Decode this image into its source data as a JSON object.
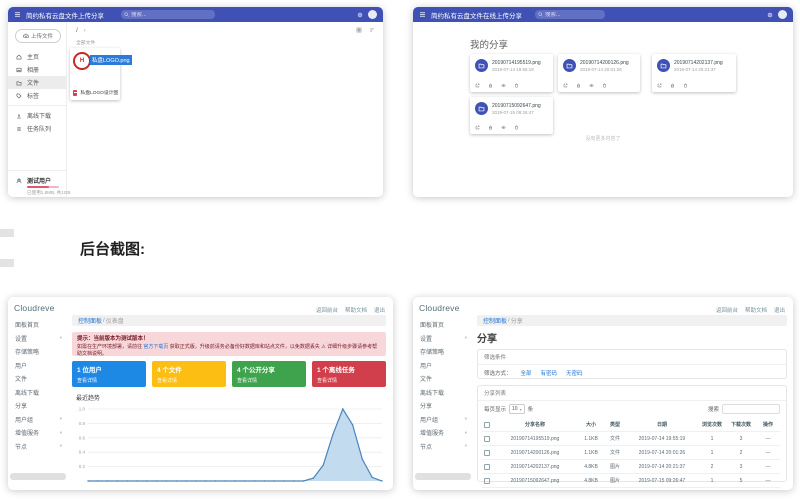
{
  "page": {
    "backend_label": "后台截图:"
  },
  "front_files": {
    "header": {
      "title": "简约私有云盘文件上传分享",
      "search_placeholder": "搜索..."
    },
    "sidebar": {
      "upload_button": "上传文件",
      "items": [
        {
          "label": "主页",
          "icon": "home-icon"
        },
        {
          "label": "相册",
          "icon": "image-icon"
        },
        {
          "label": "文件",
          "icon": "folder-icon",
          "selected": true
        },
        {
          "label": "标签",
          "icon": "tag-icon"
        }
      ],
      "tools": [
        {
          "label": "离线下载",
          "icon": "download-icon"
        },
        {
          "label": "任务队列",
          "icon": "queue-icon"
        }
      ],
      "storage": {
        "user": "测试用户",
        "usage": "已使用1.8MB, 共1GB"
      }
    },
    "content": {
      "breadcrumb_root": "/",
      "hint": "全部文件",
      "file_card": {
        "selected_name": "私盘LOGO.png",
        "footer_name": "私盘LOGO设计图稿.p..."
      }
    }
  },
  "front_shares": {
    "header": {
      "title": "简约私有云盘文件在线上传分享",
      "search_placeholder": "搜索..."
    },
    "heading": "我的分享",
    "cards": [
      {
        "name": "20190714195519.png",
        "date": "2019-07-14 19:55:19"
      },
      {
        "name": "20190714200126.png",
        "date": "2019-07-14 20:01:26"
      },
      {
        "name": "20190714202137.png",
        "date": "2019-07-14 20:21:37"
      },
      {
        "name": "20190715092647.png",
        "date": "2019-07-15 09:26:47"
      }
    ],
    "empty_hint": "没有更多内容了"
  },
  "admin": {
    "logo": "Cloudreve",
    "top_links": [
      "返回前台",
      "帮助文档",
      "退出"
    ],
    "sidebar_items": [
      {
        "label": "面板首页"
      },
      {
        "label": "设置",
        "expandable": true
      },
      {
        "label": "存储策略"
      },
      {
        "label": "用户"
      },
      {
        "label": "文件"
      },
      {
        "label": "离线下载"
      },
      {
        "label": "分享"
      },
      {
        "label": "用户组",
        "expandable": true
      },
      {
        "label": "增值服务",
        "expandable": true
      },
      {
        "label": "节点",
        "expandable": true
      }
    ]
  },
  "admin_dashboard": {
    "breadcrumb": {
      "link": "控制面板",
      "sep": " / ",
      "current": "仪表盘"
    },
    "alert": {
      "title": "提示：当前版本为测试版本！",
      "body_pre": "如需在生产环境部署，请前往 ",
      "body_link": "官方下载页",
      "body_post": " 获取正式版，升级前请务必备份好数据库和站点文件，以免数据丢失 ⚠ 详细升级步骤请参考帮助文档说明。"
    },
    "stats": [
      {
        "value": "1 位用户",
        "link": "查看详情",
        "color": "#1e88e5"
      },
      {
        "value": "4 个文件",
        "link": "查看详情",
        "color": "#fcbe12"
      },
      {
        "value": "4 个公开分享",
        "link": "查看详情",
        "color": "#3fa34d"
      },
      {
        "value": "1 个离线任务",
        "link": "查看详情",
        "color": "#d23f4c"
      }
    ],
    "chart_title": "最近趋势"
  },
  "chart_data": {
    "type": "area",
    "title": "最近趋势",
    "ylim": [
      0,
      1.0
    ],
    "yticks": [
      1.0,
      0.8,
      0.6,
      0.4,
      0.2
    ],
    "grid": true,
    "legend": false,
    "line_color": "#4a84bd",
    "fill_color": "#b9d5ec",
    "values": [
      0,
      0,
      0,
      0,
      0,
      0,
      0,
      0,
      0,
      0,
      0,
      0,
      0,
      0,
      0,
      0,
      0,
      0,
      0,
      0,
      0,
      0,
      0,
      0.04,
      0.22,
      0.65,
      1.0,
      0.78,
      0.3,
      0.05,
      0
    ]
  },
  "admin_shares": {
    "breadcrumb": {
      "link": "控制面板",
      "sep": " / ",
      "current": "分享"
    },
    "title": "分享",
    "filter_card": {
      "title": "筛选条件",
      "label": "筛选方式：",
      "options": [
        "全部",
        "有密码",
        "无密码"
      ]
    },
    "list_card": {
      "title": "分享列表",
      "per_page_label": "每页显示",
      "per_page_value": "10",
      "per_page_suffix": "条",
      "search_label": "搜索",
      "headers": {
        "name": "分享名称",
        "size": "大小",
        "type": "类型",
        "date": "日期",
        "views": "浏览次数",
        "downloads": "下载次数",
        "action": "操作"
      },
      "rows": [
        {
          "name": "20190714195519.png",
          "size": "1.1KB",
          "type": "文件",
          "date": "2019-07-14 19:55:19",
          "views": "1",
          "downloads": "3",
          "action": "—"
        },
        {
          "name": "20190714200126.png",
          "size": "1.1KB",
          "type": "文件",
          "date": "2019-07-14 20:01:26",
          "views": "1",
          "downloads": "2",
          "action": "—"
        },
        {
          "name": "20190714202137.png",
          "size": "4.8KB",
          "type": "图片",
          "date": "2019-07-14 20:21:37",
          "views": "2",
          "downloads": "3",
          "action": "—"
        },
        {
          "name": "20190715092647.png",
          "size": "4.8KB",
          "type": "图片",
          "date": "2019-07-15 09:26:47",
          "views": "1",
          "downloads": "5",
          "action": "—"
        }
      ]
    }
  }
}
